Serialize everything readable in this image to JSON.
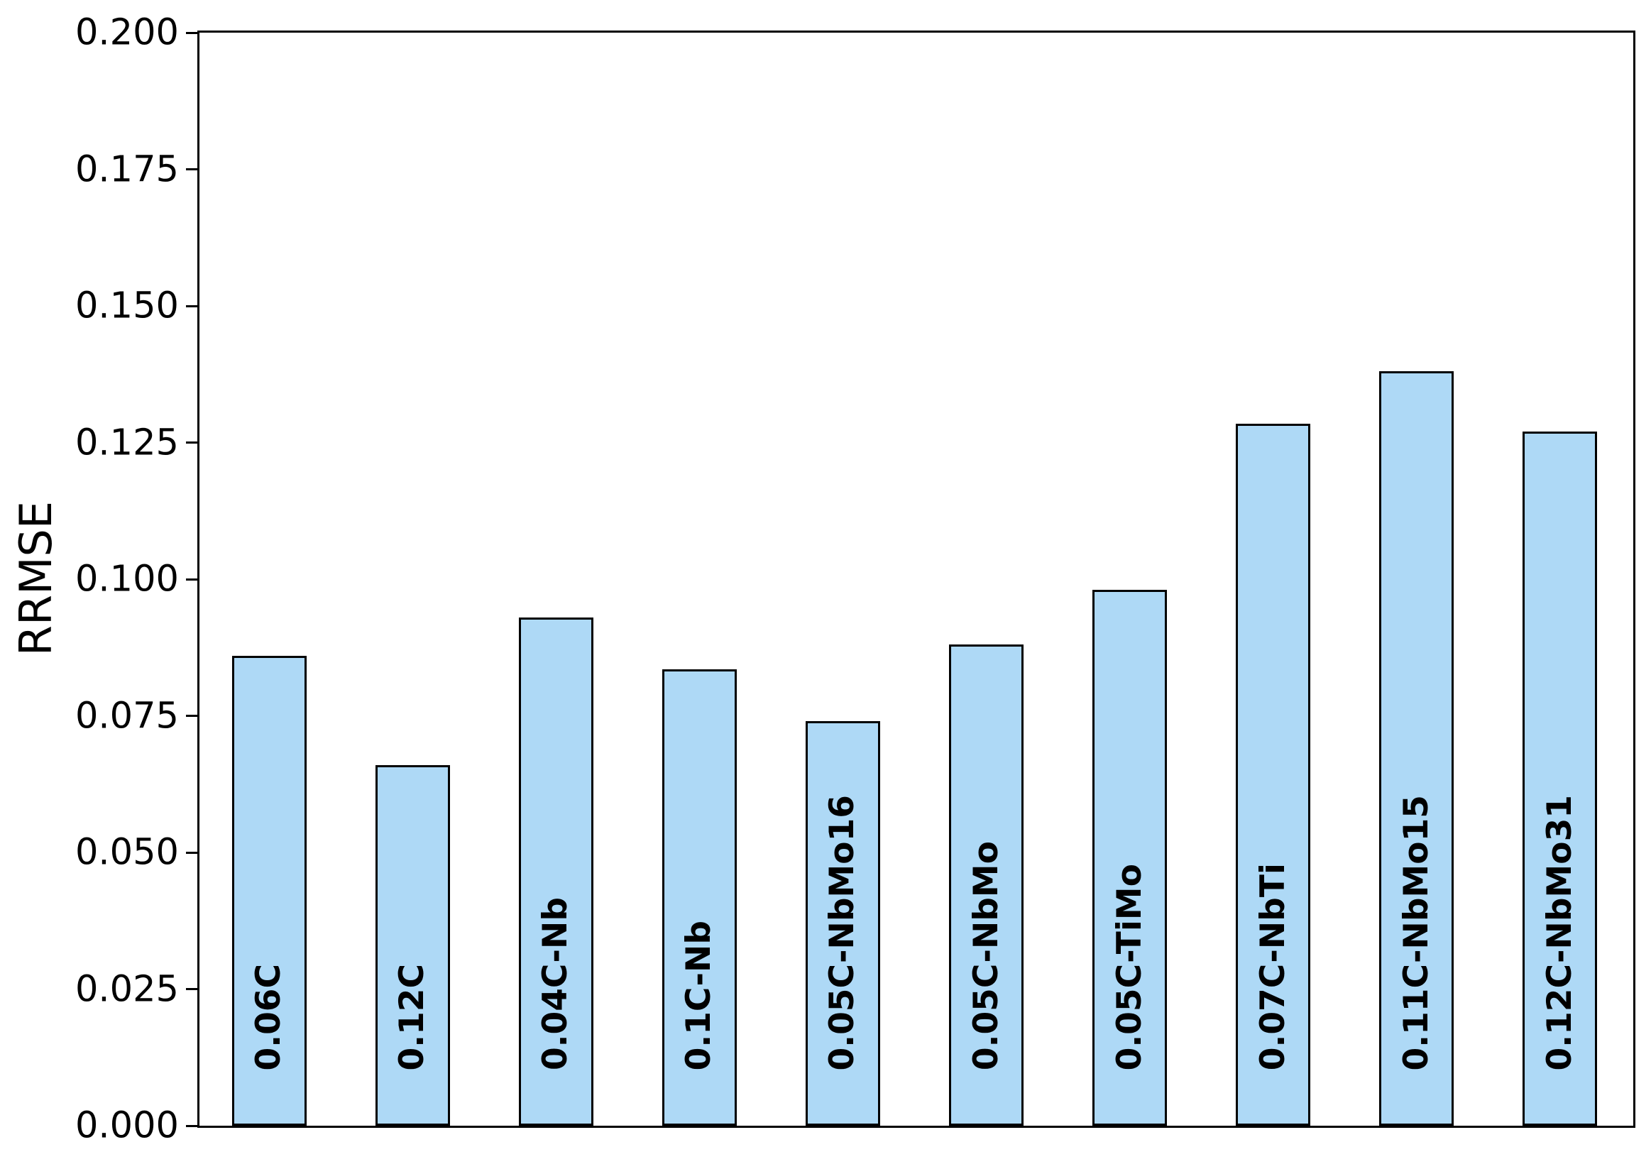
{
  "figure": {
    "background": "#ffffff"
  },
  "chart_data": {
    "type": "bar",
    "title": "",
    "xlabel": "",
    "ylabel": "RRMSE",
    "categories": [
      "0.06C",
      "0.12C",
      "0.04C-Nb",
      "0.1C-Nb",
      "0.05C-NbMo16",
      "0.05C-NbMo",
      "0.05C-TiMo",
      "0.07C-NbTi",
      "0.11C-NbMo15",
      "0.12C-NbMo31"
    ],
    "values": [
      0.086,
      0.066,
      0.093,
      0.0835,
      0.074,
      0.088,
      0.098,
      0.1285,
      0.138,
      0.127
    ],
    "ylim": [
      0,
      0.2
    ],
    "yticks": [
      0.0,
      0.025,
      0.05,
      0.075,
      0.1,
      0.125,
      0.15,
      0.175,
      0.2
    ],
    "ytick_labels": [
      "0.000",
      "0.025",
      "0.050",
      "0.075",
      "0.100",
      "0.125",
      "0.150",
      "0.175",
      "0.200"
    ],
    "xtick_labels": [],
    "grid": false,
    "legend": "none",
    "bar_labels": "category names, bold, rotated 90deg, inside bars near bottom",
    "colors": {
      "bar_fill": "#AED9F6",
      "bar_edge": "#000000",
      "text": "#000000",
      "spines": "#000000",
      "background": "#ffffff"
    }
  }
}
